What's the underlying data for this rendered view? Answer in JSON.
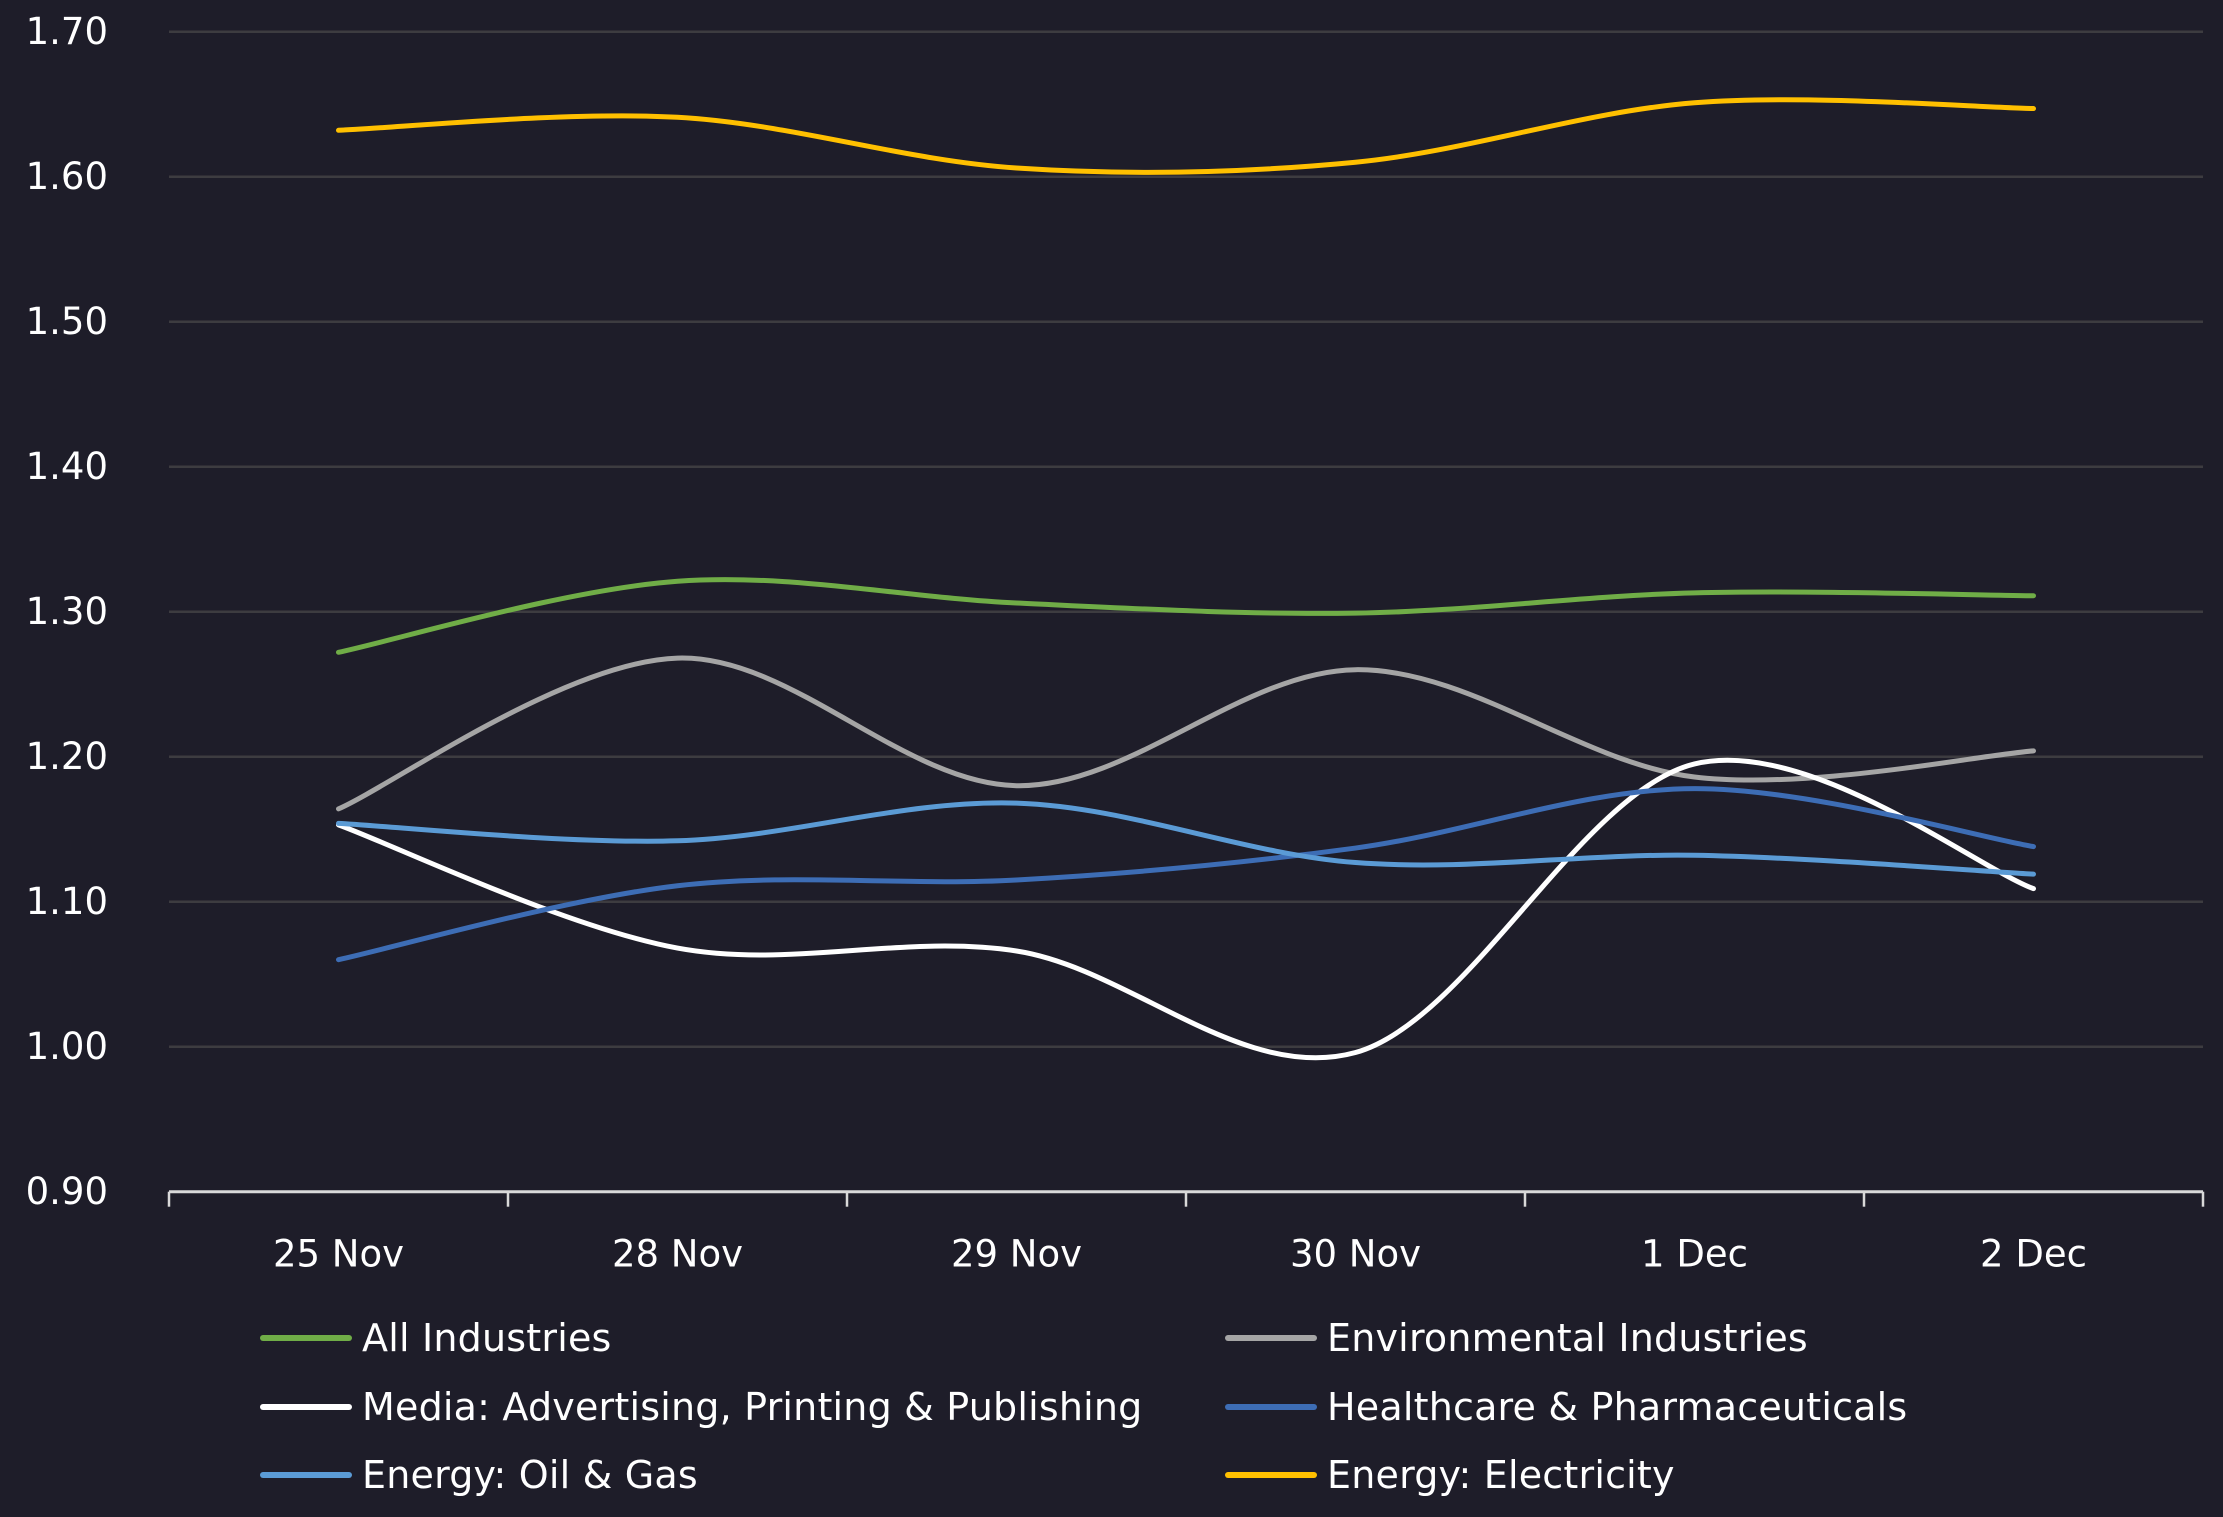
{
  "chart_data": {
    "type": "line",
    "title": "",
    "xlabel": "",
    "ylabel": "",
    "categories": [
      "25 Nov",
      "28 Nov",
      "29 Nov",
      "30 Nov",
      "1 Dec",
      "2 Dec"
    ],
    "ylim": [
      0.9,
      1.7
    ],
    "yticks": [
      0.9,
      1.0,
      1.1,
      1.2,
      1.3,
      1.4,
      1.5,
      1.6,
      1.7
    ],
    "ytick_labels": [
      "0.90",
      "1.00",
      "1.10",
      "1.20",
      "1.30",
      "1.40",
      "1.50",
      "1.60",
      "1.70"
    ],
    "grid": "horizontal",
    "smooth": true,
    "legend_position": "bottom",
    "series": [
      {
        "name": "All Industries",
        "color": "#70ad47",
        "values": [
          1.272,
          1.321,
          1.306,
          1.299,
          1.313,
          1.311
        ]
      },
      {
        "name": "Environmental Industries",
        "color": "#a5a5a5",
        "values": [
          1.164,
          1.268,
          1.18,
          1.26,
          1.186,
          1.204
        ]
      },
      {
        "name": "Media: Advertising, Printing & Publishing",
        "color": "#ffffff",
        "values": [
          1.153,
          1.068,
          1.066,
          0.996,
          1.195,
          1.109
        ]
      },
      {
        "name": "Healthcare & Pharmaceuticals",
        "color": "#3d6db5",
        "values": [
          1.06,
          1.111,
          1.115,
          1.137,
          1.178,
          1.138
        ]
      },
      {
        "name": "Energy: Oil & Gas",
        "color": "#5b9bd5",
        "values": [
          1.154,
          1.142,
          1.168,
          1.127,
          1.132,
          1.119
        ]
      },
      {
        "name": "Energy: Electricity",
        "color": "#ffc000",
        "values": [
          1.632,
          1.641,
          1.606,
          1.61,
          1.651,
          1.647
        ]
      }
    ]
  },
  "colors": {
    "background": "#1e1d29",
    "gridline": "#3d3c40",
    "axis": "#d9d9d9",
    "text": "#ffffff"
  },
  "legend": {
    "items": [
      {
        "label": "All Industries",
        "color": "#70ad47"
      },
      {
        "label": "Environmental Industries",
        "color": "#a5a5a5"
      },
      {
        "label": "Media: Advertising, Printing & Publishing",
        "color": "#ffffff"
      },
      {
        "label": "Healthcare & Pharmaceuticals",
        "color": "#3d6db5"
      },
      {
        "label": "Energy: Oil & Gas",
        "color": "#5b9bd5"
      },
      {
        "label": "Energy: Electricity",
        "color": "#ffc000"
      }
    ]
  }
}
